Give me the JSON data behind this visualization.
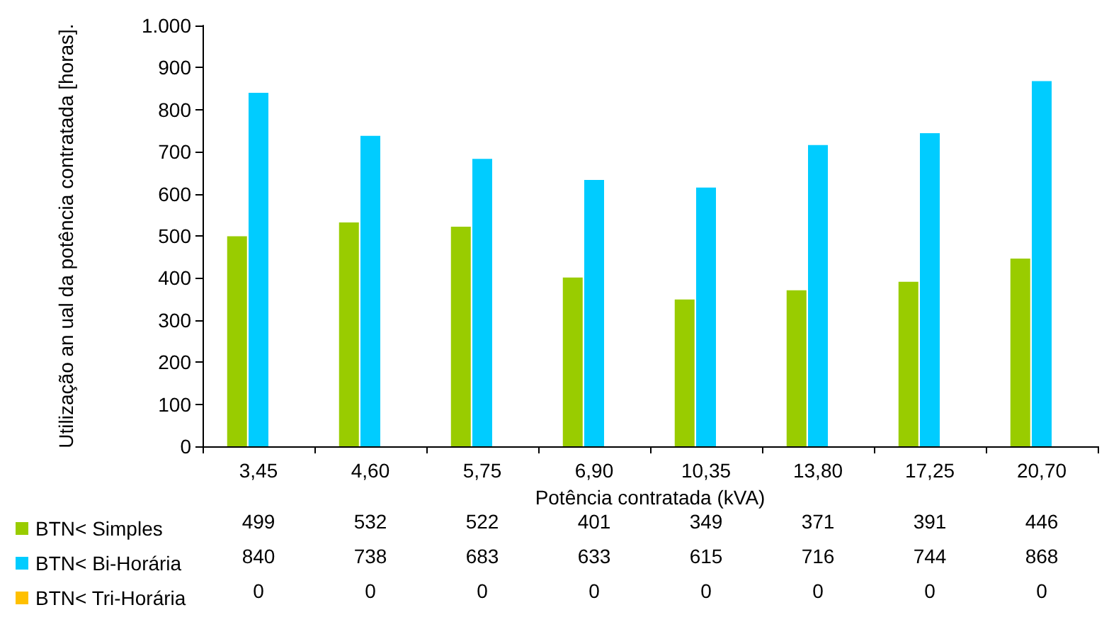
{
  "chart_data": {
    "type": "bar",
    "xlabel": "Potência contratada (kVA)",
    "ylabel": "Utilização an ual da potência contratada [horas].",
    "categories": [
      "3,45",
      "4,60",
      "5,75",
      "6,90",
      "10,35",
      "13,80",
      "17,25",
      "20,70"
    ],
    "series": [
      {
        "name": "BTN< Simples",
        "color": "#99cc00",
        "values": [
          499,
          532,
          522,
          401,
          349,
          371,
          391,
          446
        ]
      },
      {
        "name": "BTN< Bi-Horária",
        "color": "#00ccff",
        "values": [
          840,
          738,
          683,
          633,
          615,
          716,
          744,
          868
        ]
      },
      {
        "name": "BTN< Tri-Horária",
        "color": "#ffc000",
        "values": [
          0,
          0,
          0,
          0,
          0,
          0,
          0,
          0
        ]
      }
    ],
    "ylim": [
      0,
      1000
    ],
    "yticks": [
      0,
      100,
      200,
      300,
      400,
      500,
      600,
      700,
      800,
      900,
      {
        "value": 1000,
        "label": "1.000"
      }
    ],
    "grid": false,
    "legend": "bottom left",
    "data_labels": true
  }
}
